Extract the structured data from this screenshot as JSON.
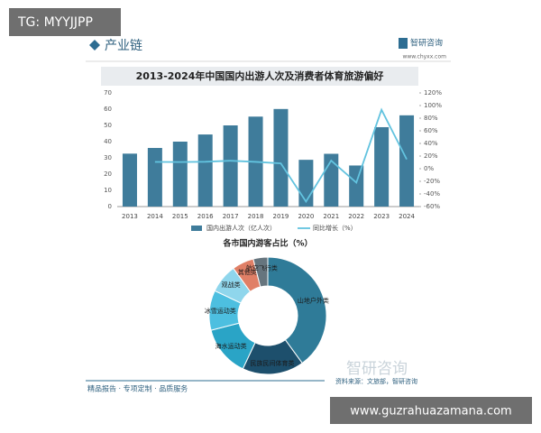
{
  "header": {
    "watermark": "TG: MYYJJPP",
    "section": "产业链",
    "brand": "智研咨询",
    "url": "www.chyxx.com"
  },
  "chart_data": [
    {
      "type": "combo",
      "title": "2013-2024年中国国内出游人次及消费者体育旅游偏好",
      "categories": [
        "2013",
        "2014",
        "2015",
        "2016",
        "2017",
        "2018",
        "2019",
        "2020",
        "2021",
        "2022",
        "2023",
        "2024"
      ],
      "series": [
        {
          "name": "国内出游人次（亿人次）",
          "type": "bar",
          "color": "#3f7c9b",
          "values": [
            32.6,
            36.1,
            40,
            44.4,
            50,
            55.4,
            60.1,
            28.8,
            32.5,
            25.3,
            48.9,
            56.2
          ]
        },
        {
          "name": "同比增长（%）",
          "type": "line",
          "axis": "y2",
          "color": "#62c3df",
          "values": [
            null,
            10.7,
            10.5,
            11,
            12.6,
            10.8,
            8.4,
            -52.1,
            12.8,
            -22.1,
            93.3,
            14.8
          ]
        }
      ],
      "ylim": [
        0,
        70
      ],
      "yticks": [
        0,
        10,
        20,
        30,
        40,
        50,
        60,
        70
      ],
      "y2lim": [
        -60,
        120
      ],
      "y2ticks": [
        {
          "value": -60,
          "label": "-60%"
        },
        {
          "value": -40,
          "label": "-40%"
        },
        {
          "value": -20,
          "label": "-20%"
        },
        {
          "value": 0,
          "label": "0%"
        },
        {
          "value": 20,
          "label": "20%"
        },
        {
          "value": 40,
          "label": "40%"
        },
        {
          "value": 60,
          "label": "60%"
        },
        {
          "value": 80,
          "label": "80%"
        },
        {
          "value": 100,
          "label": "100%"
        },
        {
          "value": 120,
          "label": "120%"
        }
      ],
      "grid": false
    },
    {
      "type": "donut",
      "title": "各市国内游客占比（%）",
      "categories": [
        "山地户外类",
        "民族民间体育类",
        "海水运动类",
        "冰雪运动类",
        "观战类",
        "其他类",
        "航空飞行类"
      ],
      "values": [
        40,
        17,
        14,
        11,
        8,
        6,
        4
      ],
      "colors": [
        "#2f7b98",
        "#1d4f6c",
        "#2aa4c6",
        "#4dbfe0",
        "#8fd6ec",
        "#e07f66",
        "#66757e"
      ]
    }
  ],
  "footer": {
    "tagline": "精品报告 · 专项定制 · 品质服务",
    "source": "资料来源：文旅部，智研咨询",
    "brand_watermark": "智研咨询",
    "site": "www.guzrahuazamana.com"
  }
}
